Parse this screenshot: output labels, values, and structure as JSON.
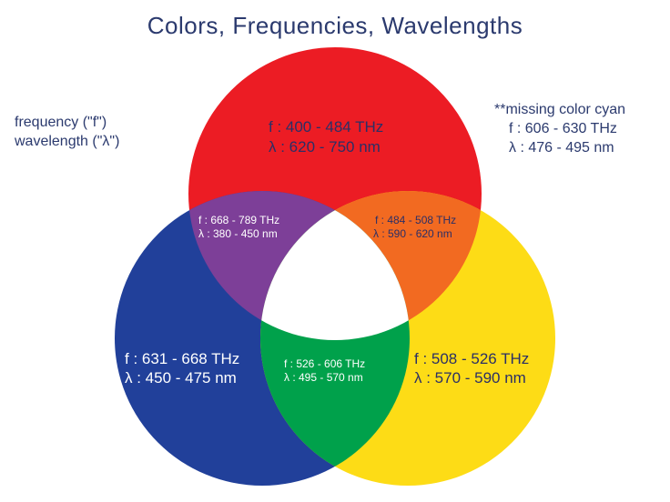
{
  "title": "Colors, Frequencies, Wavelengths",
  "legend": {
    "line1": "frequency (\"f\")",
    "line2": "wavelength (\"λ\")"
  },
  "note": {
    "line1": "**missing color cyan",
    "line2": "f : 606 - 630 THz",
    "line3": "λ : 476 - 495 nm"
  },
  "colors": {
    "red": "#ec1c24",
    "blue": "#21409a",
    "yellow": "#fddc16",
    "purple": "#7d3f98",
    "orange": "#f26a21",
    "green": "#00a14b",
    "white": "#ffffff"
  },
  "regions": {
    "red": {
      "freq": "f : 400 - 484 THz",
      "wave": "λ : 620 - 750 nm"
    },
    "blue": {
      "freq": "f : 631 - 668 THz",
      "wave": "λ : 450 - 475 nm"
    },
    "yellow": {
      "freq": "f : 508 - 526 THz",
      "wave": "λ : 570 - 590 nm"
    },
    "purple": {
      "freq": "f : 668 - 789 THz",
      "wave": "λ : 380 - 450 nm"
    },
    "orange": {
      "freq": "f : 484 - 508 THz",
      "wave": "λ : 590 - 620 nm"
    },
    "green": {
      "freq": "f : 526 - 606 THz",
      "wave": "λ : 495 - 570 nm"
    }
  }
}
